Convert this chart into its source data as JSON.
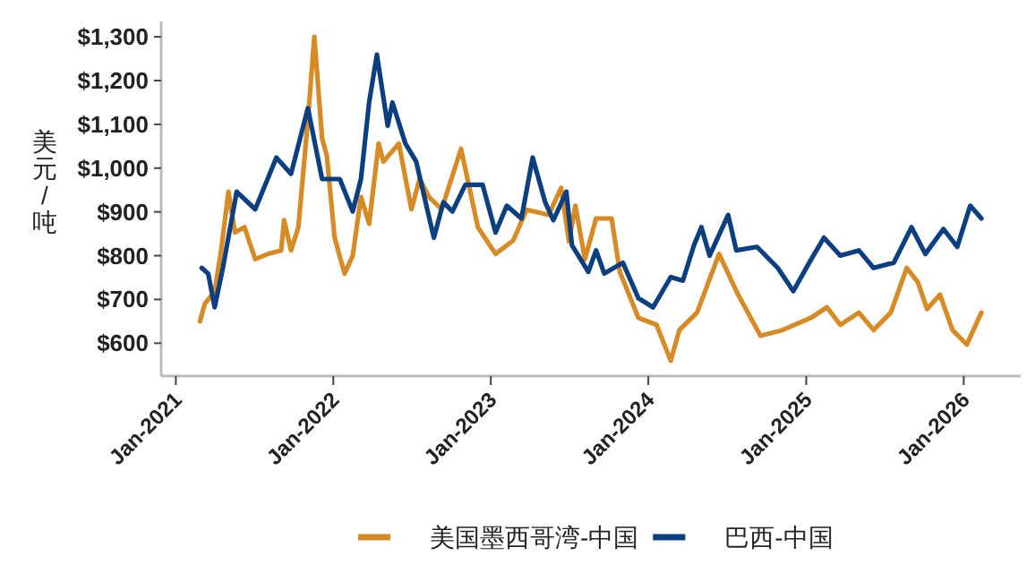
{
  "chart_data": {
    "type": "line",
    "ylabel": "美元/吨",
    "legend": "bottom",
    "grid": false,
    "marker": "none",
    "line_style": "solid",
    "xlim": [
      "2020-11-28",
      "2026-05-13"
    ],
    "ylim": [
      525,
      1335
    ],
    "xticks": [
      {
        "value": "2021-01-01",
        "label": "Jan-2021"
      },
      {
        "value": "2022-01-01",
        "label": "Jan-2022"
      },
      {
        "value": "2023-01-01",
        "label": "Jan-2023"
      },
      {
        "value": "2024-01-01",
        "label": "Jan-2024"
      },
      {
        "value": "2025-01-01",
        "label": "Jan-2025"
      },
      {
        "value": "2026-01-01",
        "label": "Jan-2026"
      }
    ],
    "yticks": [
      {
        "value": 600,
        "label": "$600"
      },
      {
        "value": 700,
        "label": "$700"
      },
      {
        "value": 800,
        "label": "$800"
      },
      {
        "value": 900,
        "label": "$900"
      },
      {
        "value": 1000,
        "label": "$1,000"
      },
      {
        "value": 1100,
        "label": "$1,100"
      },
      {
        "value": 1200,
        "label": "$1,200"
      },
      {
        "value": 1300,
        "label": "$1,300"
      }
    ],
    "series": [
      {
        "name": "美国墨西哥湾-中国",
        "color": "#d68b26",
        "x": [
          "2021-02-26",
          "2021-03-09",
          "2021-04-01",
          "2021-04-16",
          "2021-05-03",
          "2021-05-18",
          "2021-06-09",
          "2021-07-04",
          "2021-08-03",
          "2021-09-02",
          "2021-09-09",
          "2021-09-25",
          "2021-10-12",
          "2021-11-03",
          "2021-11-18",
          "2021-12-06",
          "2021-12-17",
          "2022-01-04",
          "2022-01-27",
          "2022-02-15",
          "2022-03-06",
          "2022-03-25",
          "2022-04-16",
          "2022-04-27",
          "2022-06-02",
          "2022-07-01",
          "2022-07-20",
          "2022-08-11",
          "2022-09-09",
          "2022-10-24",
          "2022-12-02",
          "2023-01-12",
          "2023-02-22",
          "2023-03-25",
          "2023-05-15",
          "2023-06-13",
          "2023-07-01",
          "2023-07-16",
          "2023-08-07",
          "2023-09-02",
          "2023-10-08",
          "2023-10-27",
          "2023-12-09",
          "2024-01-20",
          "2024-02-22",
          "2024-03-13",
          "2024-04-23",
          "2024-06-13",
          "2024-07-27",
          "2024-09-17",
          "2024-11-07",
          "2025-01-12",
          "2025-02-18",
          "2025-03-21",
          "2025-05-03",
          "2025-06-06",
          "2025-07-16",
          "2025-08-22",
          "2025-09-17",
          "2025-10-08",
          "2025-11-07",
          "2025-12-06",
          "2026-01-08",
          "2026-02-11"
        ],
        "values": [
          650,
          690,
          718,
          812,
          946,
          853,
          865,
          792,
          804,
          812,
          881,
          812,
          865,
          1109,
          1300,
          1068,
          1028,
          841,
          759,
          800,
          934,
          873,
          1056,
          1015,
          1056,
          906,
          975,
          934,
          906,
          1044,
          865,
          804,
          835,
          905,
          893,
          955,
          833,
          914,
          792,
          885,
          885,
          763,
          658,
          642,
          560,
          630,
          670,
          804,
          711,
          617,
          630,
          658,
          682,
          642,
          670,
          630,
          670,
          772,
          739,
          678,
          711,
          630,
          597,
          670
        ]
      },
      {
        "name": "巴西-中国",
        "color": "#0b3f7f",
        "x": [
          "2021-03-02",
          "2021-03-17",
          "2021-04-01",
          "2021-04-20",
          "2021-05-22",
          "2021-07-04",
          "2021-08-22",
          "2021-09-25",
          "2021-11-03",
          "2021-12-06",
          "2022-01-16",
          "2022-02-15",
          "2022-03-06",
          "2022-03-25",
          "2022-04-12",
          "2022-05-07",
          "2022-05-18",
          "2022-06-17",
          "2022-07-12",
          "2022-08-22",
          "2022-09-13",
          "2022-10-04",
          "2022-11-03",
          "2022-12-13",
          "2023-01-12",
          "2023-02-07",
          "2023-03-13",
          "2023-04-08",
          "2023-05-07",
          "2023-05-26",
          "2023-06-25",
          "2023-07-08",
          "2023-08-15",
          "2023-09-02",
          "2023-09-21",
          "2023-11-03",
          "2023-12-09",
          "2024-01-12",
          "2024-02-22",
          "2024-03-21",
          "2024-04-16",
          "2024-05-03",
          "2024-05-22",
          "2024-07-04",
          "2024-07-23",
          "2024-09-09",
          "2024-10-27",
          "2024-12-02",
          "2025-01-08",
          "2025-02-11",
          "2025-03-21",
          "2025-05-03",
          "2025-06-06",
          "2025-07-23",
          "2025-09-02",
          "2025-10-04",
          "2025-11-15",
          "2025-12-17",
          "2026-01-16",
          "2026-02-11"
        ],
        "values": [
          772,
          759,
          682,
          772,
          946,
          906,
          1024,
          987,
          1137,
          975,
          975,
          901,
          975,
          1150,
          1259,
          1097,
          1150,
          1056,
          1015,
          841,
          922,
          901,
          962,
          962,
          853,
          914,
          885,
          1024,
          922,
          881,
          946,
          824,
          763,
          812,
          759,
          784,
          703,
          682,
          751,
          743,
          824,
          865,
          800,
          893,
          812,
          820,
          772,
          719,
          784,
          841,
          800,
          812,
          772,
          784,
          865,
          804,
          861,
          820,
          914,
          885
        ]
      }
    ]
  }
}
